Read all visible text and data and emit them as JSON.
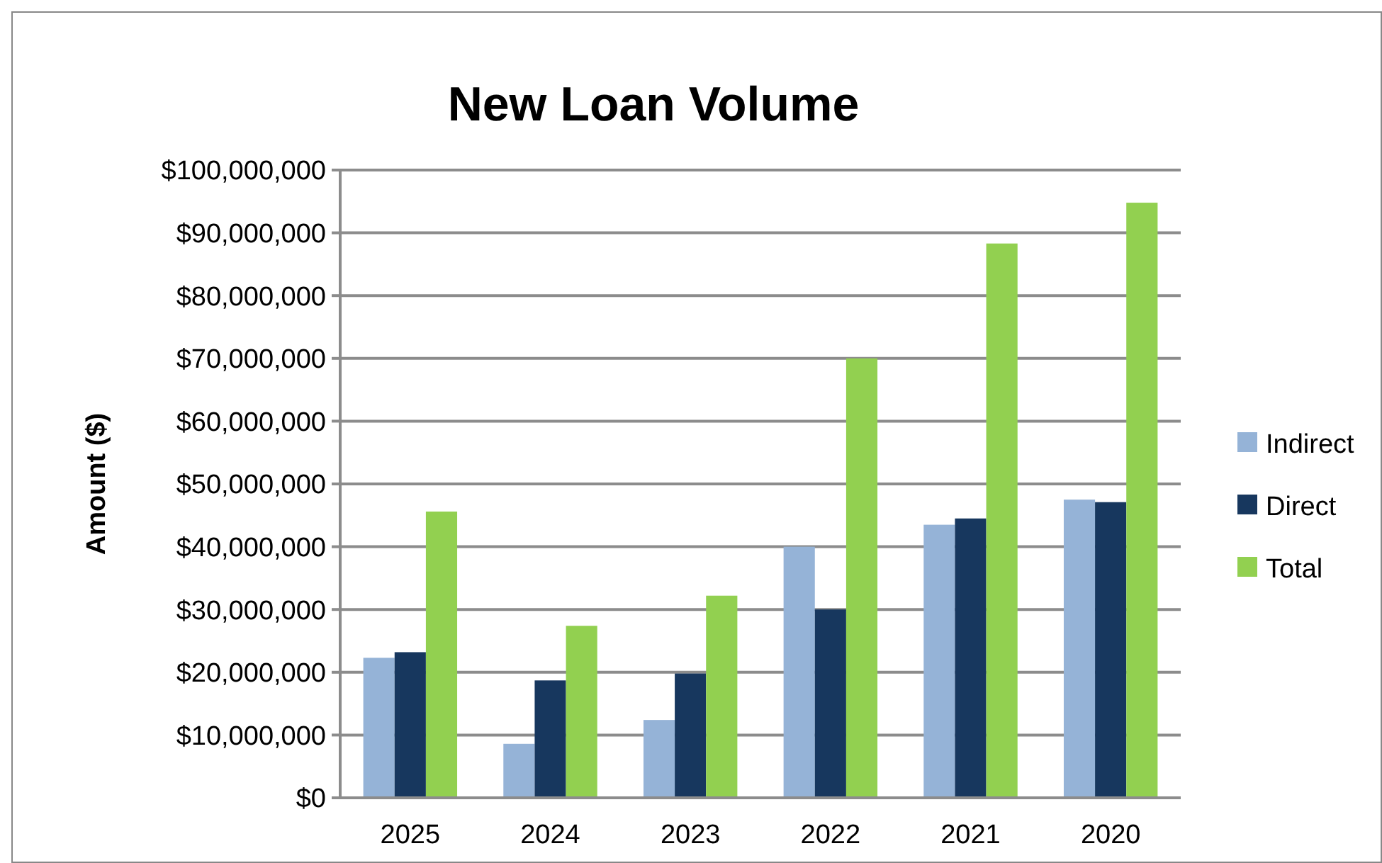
{
  "chart_data": {
    "type": "bar",
    "title": "New Loan Volume",
    "ylabel": "Amount ($)",
    "categories": [
      "2025",
      "2024",
      "2023",
      "2022",
      "2021",
      "2020"
    ],
    "series": [
      {
        "name": "Indirect",
        "color": "#95b3d7",
        "values": [
          22300000,
          8600000,
          12400000,
          40000000,
          43500000,
          47500000
        ]
      },
      {
        "name": "Direct",
        "color": "#17375e",
        "values": [
          23200000,
          18700000,
          19800000,
          30000000,
          44500000,
          47100000
        ]
      },
      {
        "name": "Total",
        "color": "#92d050",
        "values": [
          45600000,
          27400000,
          32200000,
          70000000,
          88300000,
          94800000
        ]
      }
    ],
    "ylim": [
      0,
      100000000
    ],
    "yticks": [
      {
        "value": 0,
        "label": "$0"
      },
      {
        "value": 10000000,
        "label": "$10,000,000"
      },
      {
        "value": 20000000,
        "label": "$20,000,000"
      },
      {
        "value": 30000000,
        "label": "$30,000,000"
      },
      {
        "value": 40000000,
        "label": "$40,000,000"
      },
      {
        "value": 50000000,
        "label": "$50,000,000"
      },
      {
        "value": 60000000,
        "label": "$60,000,000"
      },
      {
        "value": 70000000,
        "label": "$70,000,000"
      },
      {
        "value": 80000000,
        "label": "$80,000,000"
      },
      {
        "value": 90000000,
        "label": "$90,000,000"
      },
      {
        "value": 100000000,
        "label": "$100,000,000"
      }
    ],
    "grid": "y",
    "legend": "right"
  }
}
